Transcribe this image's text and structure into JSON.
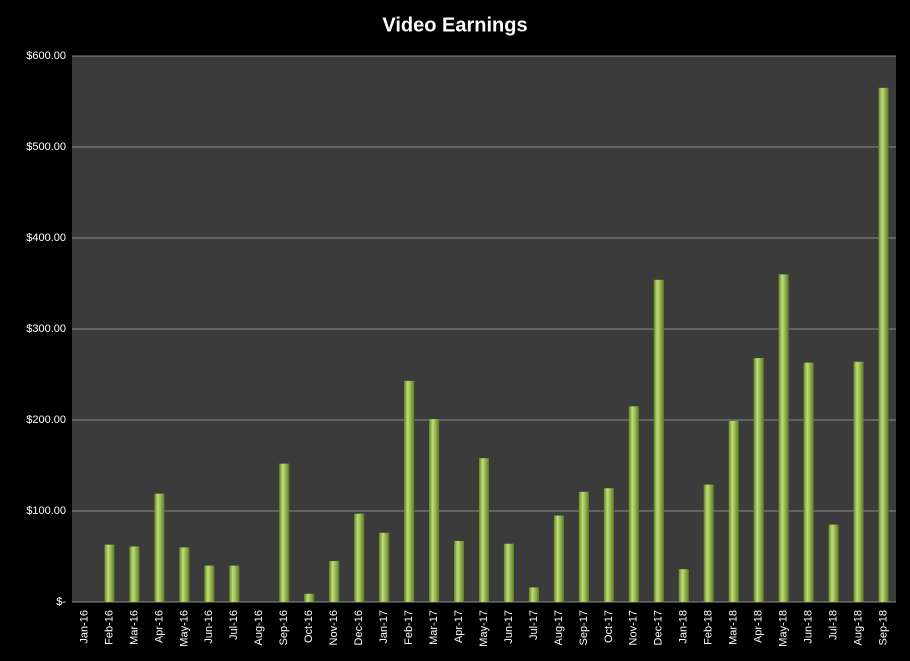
{
  "chart_data": {
    "type": "bar",
    "title": "Video Earnings",
    "categories": [
      "Jan-16",
      "Feb-16",
      "Mar-16",
      "Apr-16",
      "May-16",
      "Jun-16",
      "Jul-16",
      "Aug-16",
      "Sep-16",
      "Oct-16",
      "Nov-16",
      "Dec-16",
      "Jan-17",
      "Feb-17",
      "Mar-17",
      "Apr-17",
      "May-17",
      "Jun-17",
      "Jul-17",
      "Aug-17",
      "Sep-17",
      "Oct-17",
      "Nov-17",
      "Dec-17",
      "Jan-18",
      "Feb-18",
      "Mar-18",
      "Apr-18",
      "May-18",
      "Jun-18",
      "Jul-18",
      "Aug-18",
      "Sep-18"
    ],
    "values": [
      0,
      63,
      61,
      119,
      60,
      40,
      40,
      0,
      152,
      9,
      45,
      97,
      76,
      243,
      201,
      67,
      158,
      64,
      16,
      95,
      121,
      125,
      215,
      354,
      36,
      129,
      199,
      268,
      360,
      263,
      85,
      264,
      565
    ],
    "color": "#9acd32",
    "ylim": [
      0,
      600
    ],
    "yticks": [
      {
        "value": 0,
        "label": "$-"
      },
      {
        "value": 100,
        "label": "$100.00"
      },
      {
        "value": 200,
        "label": "$200.00"
      },
      {
        "value": 300,
        "label": "$300.00"
      },
      {
        "value": 400,
        "label": "$400.00"
      },
      {
        "value": 500,
        "label": "$500.00"
      },
      {
        "value": 600,
        "label": "$600.00"
      }
    ],
    "grid": true
  }
}
